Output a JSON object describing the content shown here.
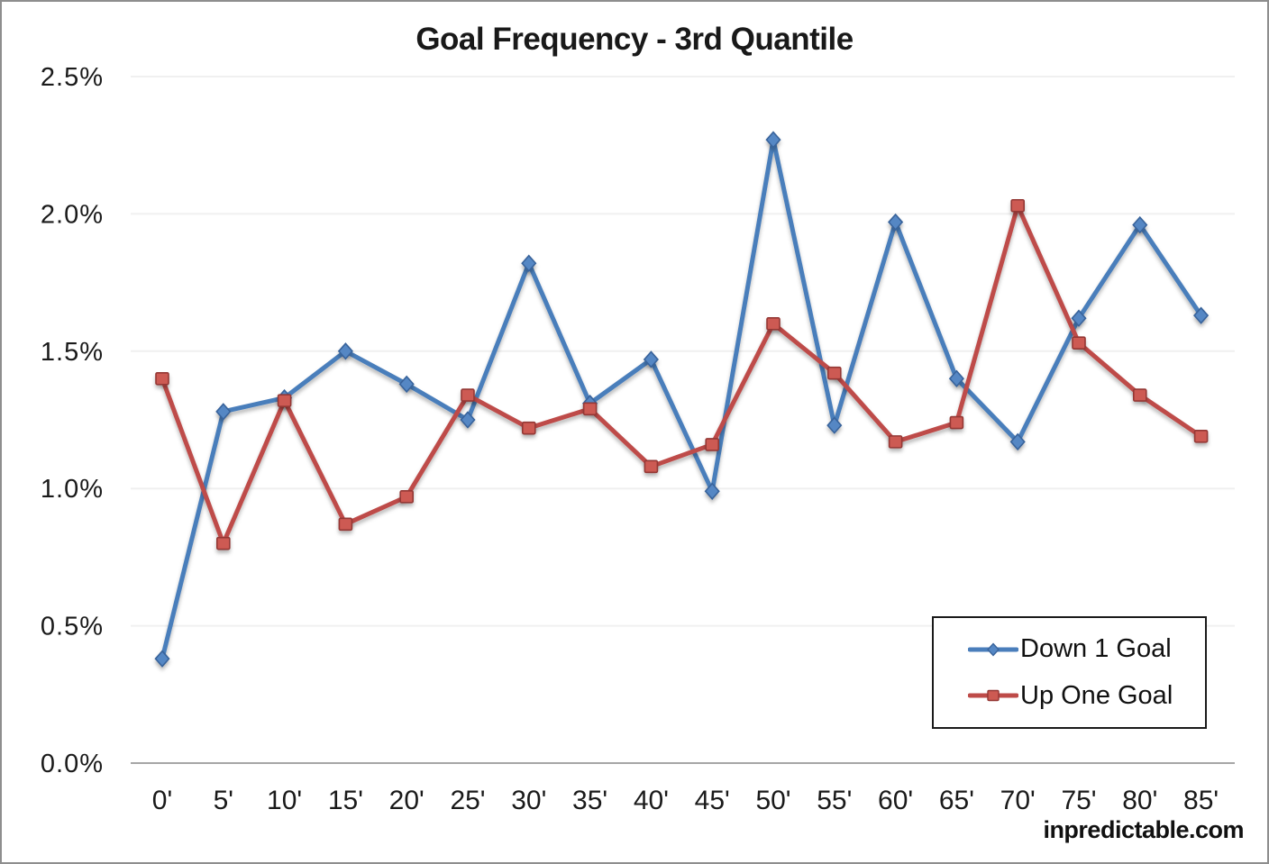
{
  "page": {
    "watermark": "inpredictable.com"
  },
  "chart_data": {
    "type": "line",
    "title": "Goal Frequency - 3rd Quantile",
    "categories": [
      "0'",
      "5'",
      "10'",
      "15'",
      "20'",
      "25'",
      "30'",
      "35'",
      "40'",
      "45'",
      "50'",
      "55'",
      "60'",
      "65'",
      "70'",
      "75'",
      "80'",
      "85'"
    ],
    "series": [
      {
        "name": "Down 1 Goal",
        "marker": "diamond",
        "color": "#4A7EBB",
        "marker_fill": "#5587C4",
        "marker_border": "#39639B",
        "values": [
          0.38,
          1.28,
          1.33,
          1.5,
          1.38,
          1.25,
          1.82,
          1.31,
          1.47,
          0.99,
          2.27,
          1.23,
          1.97,
          1.4,
          1.17,
          1.62,
          1.96,
          1.63
        ]
      },
      {
        "name": "Up One Goal",
        "marker": "square",
        "color": "#BE4B48",
        "marker_fill": "#CD5A52",
        "marker_border": "#943734",
        "values": [
          1.4,
          0.8,
          1.32,
          0.87,
          0.97,
          1.34,
          1.22,
          1.29,
          1.08,
          1.16,
          1.6,
          1.42,
          1.17,
          1.24,
          2.03,
          1.53,
          1.34,
          1.19
        ]
      }
    ],
    "ylim": [
      0,
      2.5
    ],
    "ytick_step": 0.5,
    "ytick_labels": [
      "0.0%",
      "0.5%",
      "1.0%",
      "1.5%",
      "2.0%",
      "2.5%"
    ],
    "value_unit": "%",
    "grid": true,
    "legend_position": "inside bottom-right",
    "style": {
      "grid_color": "#F0F0F0",
      "axis_color": "#A6A6A6",
      "tick_label_color": "#1A1A1A"
    }
  }
}
